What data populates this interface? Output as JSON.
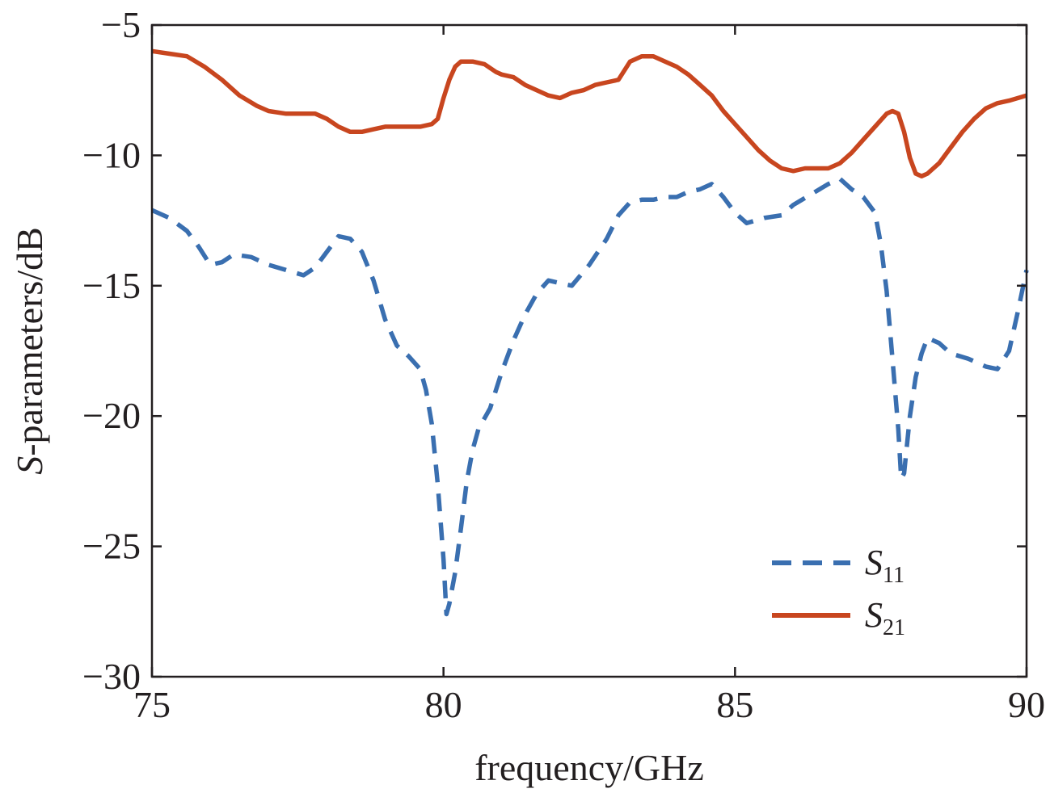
{
  "chart_data": {
    "type": "line",
    "xlabel": "frequency/GHz",
    "ylabel": {
      "italic": "S",
      "rest": "-parameters/dB"
    },
    "xlim": [
      75,
      90
    ],
    "ylim": [
      -30,
      -5
    ],
    "xticks": [
      75,
      80,
      85,
      90
    ],
    "yticks": [
      -5,
      -10,
      -15,
      -20,
      -25,
      -30
    ],
    "tick_labels": {
      "x": [
        "75",
        "80",
        "85",
        "90"
      ],
      "y": [
        "−5",
        "−10",
        "−15",
        "−20",
        "−25",
        "−30"
      ]
    },
    "grid": false,
    "legend_position": "lower-right",
    "series": [
      {
        "name": {
          "main": "S",
          "sub": "11"
        },
        "color": "#3a6fb0",
        "style": "dashed",
        "x": [
          75.0,
          75.3,
          75.6,
          75.8,
          76.0,
          76.2,
          76.4,
          76.7,
          77.0,
          77.3,
          77.6,
          77.8,
          78.0,
          78.2,
          78.4,
          78.6,
          78.8,
          79.0,
          79.2,
          79.4,
          79.6,
          79.7,
          79.8,
          79.9,
          80.0,
          80.05,
          80.1,
          80.2,
          80.3,
          80.4,
          80.5,
          80.6,
          80.8,
          81.0,
          81.2,
          81.4,
          81.6,
          81.8,
          82.0,
          82.2,
          82.5,
          82.8,
          83.0,
          83.2,
          83.4,
          83.6,
          83.8,
          84.0,
          84.2,
          84.4,
          84.6,
          84.8,
          85.0,
          85.2,
          85.5,
          85.8,
          86.0,
          86.3,
          86.6,
          86.8,
          87.0,
          87.2,
          87.4,
          87.5,
          87.6,
          87.7,
          87.8,
          87.85,
          87.9,
          88.0,
          88.1,
          88.2,
          88.3,
          88.5,
          88.7,
          89.0,
          89.3,
          89.5,
          89.7,
          89.85,
          90.0
        ],
        "y": [
          -12.1,
          -12.4,
          -12.9,
          -13.5,
          -14.2,
          -14.1,
          -13.8,
          -13.9,
          -14.2,
          -14.4,
          -14.6,
          -14.3,
          -13.7,
          -13.1,
          -13.2,
          -13.7,
          -14.8,
          -16.3,
          -17.3,
          -17.7,
          -18.2,
          -19.0,
          -20.3,
          -22.6,
          -25.5,
          -27.6,
          -27.2,
          -26.0,
          -24.3,
          -22.5,
          -21.3,
          -20.5,
          -19.7,
          -18.3,
          -17.1,
          -16.1,
          -15.3,
          -14.8,
          -14.9,
          -15.0,
          -14.2,
          -13.2,
          -12.3,
          -11.8,
          -11.7,
          -11.7,
          -11.6,
          -11.6,
          -11.4,
          -11.3,
          -11.1,
          -11.6,
          -12.2,
          -12.6,
          -12.4,
          -12.3,
          -11.9,
          -11.5,
          -11.1,
          -10.9,
          -11.3,
          -11.6,
          -12.2,
          -13.4,
          -15.2,
          -17.8,
          -20.5,
          -22.4,
          -22.2,
          -20.0,
          -18.5,
          -17.6,
          -17.0,
          -17.2,
          -17.6,
          -17.8,
          -18.1,
          -18.2,
          -17.5,
          -16.0,
          -14.4
        ]
      },
      {
        "name": {
          "main": "S",
          "sub": "21"
        },
        "color": "#c8461f",
        "style": "solid",
        "x": [
          75.0,
          75.3,
          75.6,
          75.9,
          76.2,
          76.5,
          76.8,
          77.0,
          77.3,
          77.5,
          77.8,
          78.0,
          78.2,
          78.4,
          78.6,
          78.8,
          79.0,
          79.2,
          79.4,
          79.6,
          79.8,
          79.9,
          80.0,
          80.1,
          80.2,
          80.3,
          80.5,
          80.7,
          80.9,
          81.0,
          81.2,
          81.4,
          81.6,
          81.8,
          82.0,
          82.2,
          82.4,
          82.6,
          82.8,
          83.0,
          83.2,
          83.4,
          83.6,
          83.8,
          84.0,
          84.2,
          84.4,
          84.6,
          84.8,
          85.0,
          85.2,
          85.4,
          85.6,
          85.8,
          86.0,
          86.2,
          86.4,
          86.6,
          86.8,
          87.0,
          87.2,
          87.4,
          87.6,
          87.7,
          87.8,
          87.9,
          88.0,
          88.1,
          88.2,
          88.3,
          88.5,
          88.7,
          88.9,
          89.1,
          89.3,
          89.5,
          89.7,
          90.0
        ],
        "y": [
          -6.0,
          -6.1,
          -6.2,
          -6.6,
          -7.1,
          -7.7,
          -8.1,
          -8.3,
          -8.4,
          -8.4,
          -8.4,
          -8.6,
          -8.9,
          -9.1,
          -9.1,
          -9.0,
          -8.9,
          -8.9,
          -8.9,
          -8.9,
          -8.8,
          -8.6,
          -7.8,
          -7.1,
          -6.6,
          -6.4,
          -6.4,
          -6.5,
          -6.8,
          -6.9,
          -7.0,
          -7.3,
          -7.5,
          -7.7,
          -7.8,
          -7.6,
          -7.5,
          -7.3,
          -7.2,
          -7.1,
          -6.4,
          -6.2,
          -6.2,
          -6.4,
          -6.6,
          -6.9,
          -7.3,
          -7.7,
          -8.3,
          -8.8,
          -9.3,
          -9.8,
          -10.2,
          -10.5,
          -10.6,
          -10.5,
          -10.5,
          -10.5,
          -10.3,
          -9.9,
          -9.4,
          -8.9,
          -8.4,
          -8.3,
          -8.4,
          -9.1,
          -10.1,
          -10.7,
          -10.8,
          -10.7,
          -10.3,
          -9.7,
          -9.1,
          -8.6,
          -8.2,
          -8.0,
          -7.9,
          -7.7
        ]
      }
    ]
  }
}
